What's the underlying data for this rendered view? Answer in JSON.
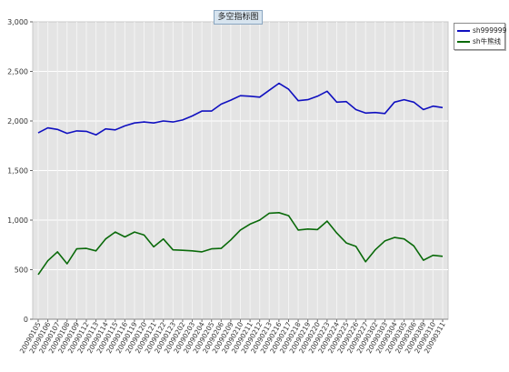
{
  "chart_data": {
    "type": "line",
    "title": "多空指标图",
    "xlabel": "",
    "ylabel": "",
    "ylim": [
      0,
      3000
    ],
    "yticks": [
      "0",
      "500",
      "1,000",
      "1,500",
      "2,000",
      "2,500",
      "3,000"
    ],
    "grid": true,
    "legend_position": "top-right",
    "categories": [
      "20090105",
      "20090106",
      "20090107",
      "20090108",
      "20090109",
      "20090112",
      "20090113",
      "20090114",
      "20090115",
      "20090116",
      "20090119",
      "20090120",
      "20090121",
      "20090122",
      "20090123",
      "20090202",
      "20090203",
      "20090204",
      "20090205",
      "20090206",
      "20090209",
      "20090210",
      "20090211",
      "20090212",
      "20090213",
      "20090216",
      "20090217",
      "20090218",
      "20090219",
      "20090220",
      "20090223",
      "20090224",
      "20090225",
      "20090226",
      "20090227",
      "20090302",
      "20090303",
      "20090304",
      "20090305",
      "20090306",
      "20090309",
      "20090310",
      "20090311"
    ],
    "series": [
      {
        "name": "sh999999",
        "color": "#1010c0",
        "values": [
          1880,
          1930,
          1915,
          1875,
          1900,
          1895,
          1860,
          1920,
          1910,
          1950,
          1980,
          1990,
          1980,
          2000,
          1990,
          2010,
          2050,
          2100,
          2100,
          2170,
          2210,
          2255,
          2250,
          2240,
          2310,
          2380,
          2320,
          2205,
          2215,
          2250,
          2300,
          2190,
          2195,
          2115,
          2080,
          2085,
          2075,
          2190,
          2215,
          2190,
          2115,
          2150,
          2135
        ]
      },
      {
        "name": "sh牛熊线",
        "color": "#0a6a0a",
        "values": [
          450,
          590,
          680,
          560,
          710,
          715,
          690,
          810,
          880,
          830,
          880,
          850,
          730,
          810,
          700,
          695,
          690,
          680,
          710,
          715,
          800,
          900,
          960,
          1000,
          1070,
          1075,
          1045,
          900,
          910,
          905,
          990,
          870,
          770,
          735,
          580,
          700,
          790,
          825,
          810,
          740,
          595,
          645,
          635
        ]
      }
    ]
  }
}
